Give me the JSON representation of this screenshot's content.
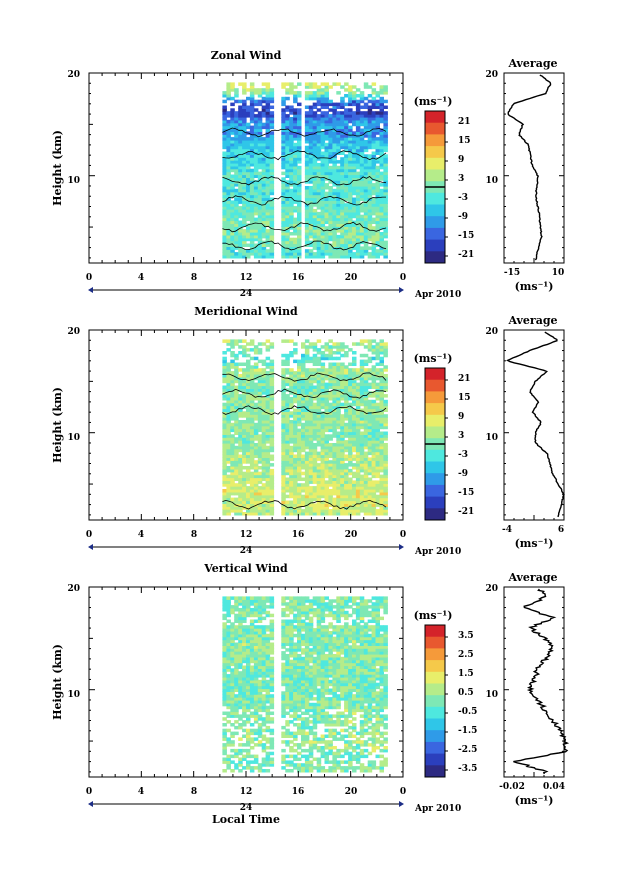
{
  "panels": [
    {
      "title": "Zonal Wind",
      "ylabel": "Height (km)",
      "unit": "(ms⁻¹)",
      "y_ticks": [
        "20",
        "10"
      ],
      "x_ticks": [
        "0",
        "4",
        "8",
        "12",
        "16",
        "20",
        "0"
      ],
      "date_day": "24",
      "date_label": "Apr 2010",
      "colorbar_ticks": [
        "21",
        "15",
        "9",
        "3",
        "-3",
        "-9",
        "-15",
        "-21"
      ],
      "avg_title": "Average",
      "avg_x_ticks": [
        "-15",
        "10"
      ],
      "avg_unit": "(ms⁻¹)",
      "avg_y_ticks": [
        "20",
        "10"
      ]
    },
    {
      "title": "Meridional Wind",
      "ylabel": "Height (km)",
      "unit": "(ms⁻¹)",
      "y_ticks": [
        "20",
        "10"
      ],
      "x_ticks": [
        "0",
        "4",
        "8",
        "12",
        "16",
        "20",
        "0"
      ],
      "date_day": "24",
      "date_label": "Apr 2010",
      "colorbar_ticks": [
        "21",
        "15",
        "9",
        "3",
        "-3",
        "-9",
        "-15",
        "-21"
      ],
      "avg_title": "Average",
      "avg_x_ticks": [
        "-4",
        "6"
      ],
      "avg_unit": "(ms⁻¹)",
      "avg_y_ticks": [
        "20",
        "10"
      ]
    },
    {
      "title": "Vertical Wind",
      "ylabel": "Height (km)",
      "unit": "(ms⁻¹)",
      "y_ticks": [
        "20",
        "10"
      ],
      "x_ticks": [
        "0",
        "4",
        "8",
        "12",
        "16",
        "20",
        "0"
      ],
      "date_day": "24",
      "date_label": "Apr 2010",
      "colorbar_ticks": [
        "3.5",
        "2.5",
        "1.5",
        "0.5",
        "-0.5",
        "-1.5",
        "-2.5",
        "-3.5"
      ],
      "avg_title": "Average",
      "avg_x_ticks": [
        "-0.02",
        "0.04"
      ],
      "avg_unit": "(ms⁻¹)",
      "avg_y_ticks": [
        "20",
        "10"
      ]
    }
  ],
  "xlabel": "Local Time",
  "colors": {
    "colormap": [
      "#2d2a82",
      "#2b3fbd",
      "#3a66e0",
      "#2f9be8",
      "#2fc6e8",
      "#4ee8df",
      "#7ee8b5",
      "#b5ec8a",
      "#e8ee6a",
      "#f5c94a",
      "#f59a3a",
      "#e8582f",
      "#d4232a"
    ]
  },
  "chart_data": [
    {
      "type": "heatmap",
      "title": "Zonal Wind",
      "ylabel": "Height (km)",
      "xlabel": "Local Time",
      "xlim": [
        0,
        24
      ],
      "ylim": [
        1.5,
        20
      ],
      "data_x_range": [
        10.2,
        22.7
      ],
      "color_range": [
        -24,
        24
      ],
      "colorbar_contour": 0,
      "profile_key_heights": [
        20,
        19,
        18,
        17,
        16,
        15,
        14,
        13,
        12,
        11,
        10,
        8,
        6,
        4,
        2
      ],
      "profile_values": [
        -2,
        5,
        2,
        -15,
        -18,
        -10,
        -12,
        -7,
        -6,
        -5,
        -2,
        -3,
        -1,
        0,
        -3
      ],
      "profile_xlim": [
        -20,
        12
      ]
    },
    {
      "type": "heatmap",
      "title": "Meridional Wind",
      "ylabel": "Height (km)",
      "xlabel": "Local Time",
      "xlim": [
        0,
        24
      ],
      "ylim": [
        1.5,
        20
      ],
      "data_x_range": [
        10.2,
        22.7
      ],
      "color_range": [
        -24,
        24
      ],
      "colorbar_contour": 0,
      "profile_key_heights": [
        20,
        19,
        18,
        17,
        16,
        15,
        14,
        13,
        12,
        11,
        10,
        9,
        8,
        6,
        4,
        2
      ],
      "profile_values": [
        2,
        5,
        0,
        -4,
        3,
        1,
        0,
        1.5,
        0.5,
        2,
        1,
        1,
        3,
        4,
        6,
        5
      ],
      "profile_xlim": [
        -4.5,
        6
      ]
    },
    {
      "type": "heatmap",
      "title": "Vertical Wind",
      "ylabel": "Height (km)",
      "xlabel": "Local Time",
      "xlim": [
        0,
        24
      ],
      "ylim": [
        1.5,
        20
      ],
      "data_x_range": [
        10.2,
        22.7
      ],
      "color_range": [
        -4,
        4
      ],
      "colorbar_contour": null,
      "profile_key_heights": [
        20,
        19,
        18,
        17,
        16,
        15,
        14,
        12,
        10,
        8,
        6,
        4,
        3,
        2
      ],
      "profile_values": [
        0.01,
        0.02,
        -0.01,
        0.03,
        0.0,
        0.02,
        0.03,
        0.01,
        0.0,
        0.02,
        0.04,
        0.05,
        -0.02,
        0.02
      ],
      "profile_xlim": [
        -0.035,
        0.045
      ]
    }
  ]
}
